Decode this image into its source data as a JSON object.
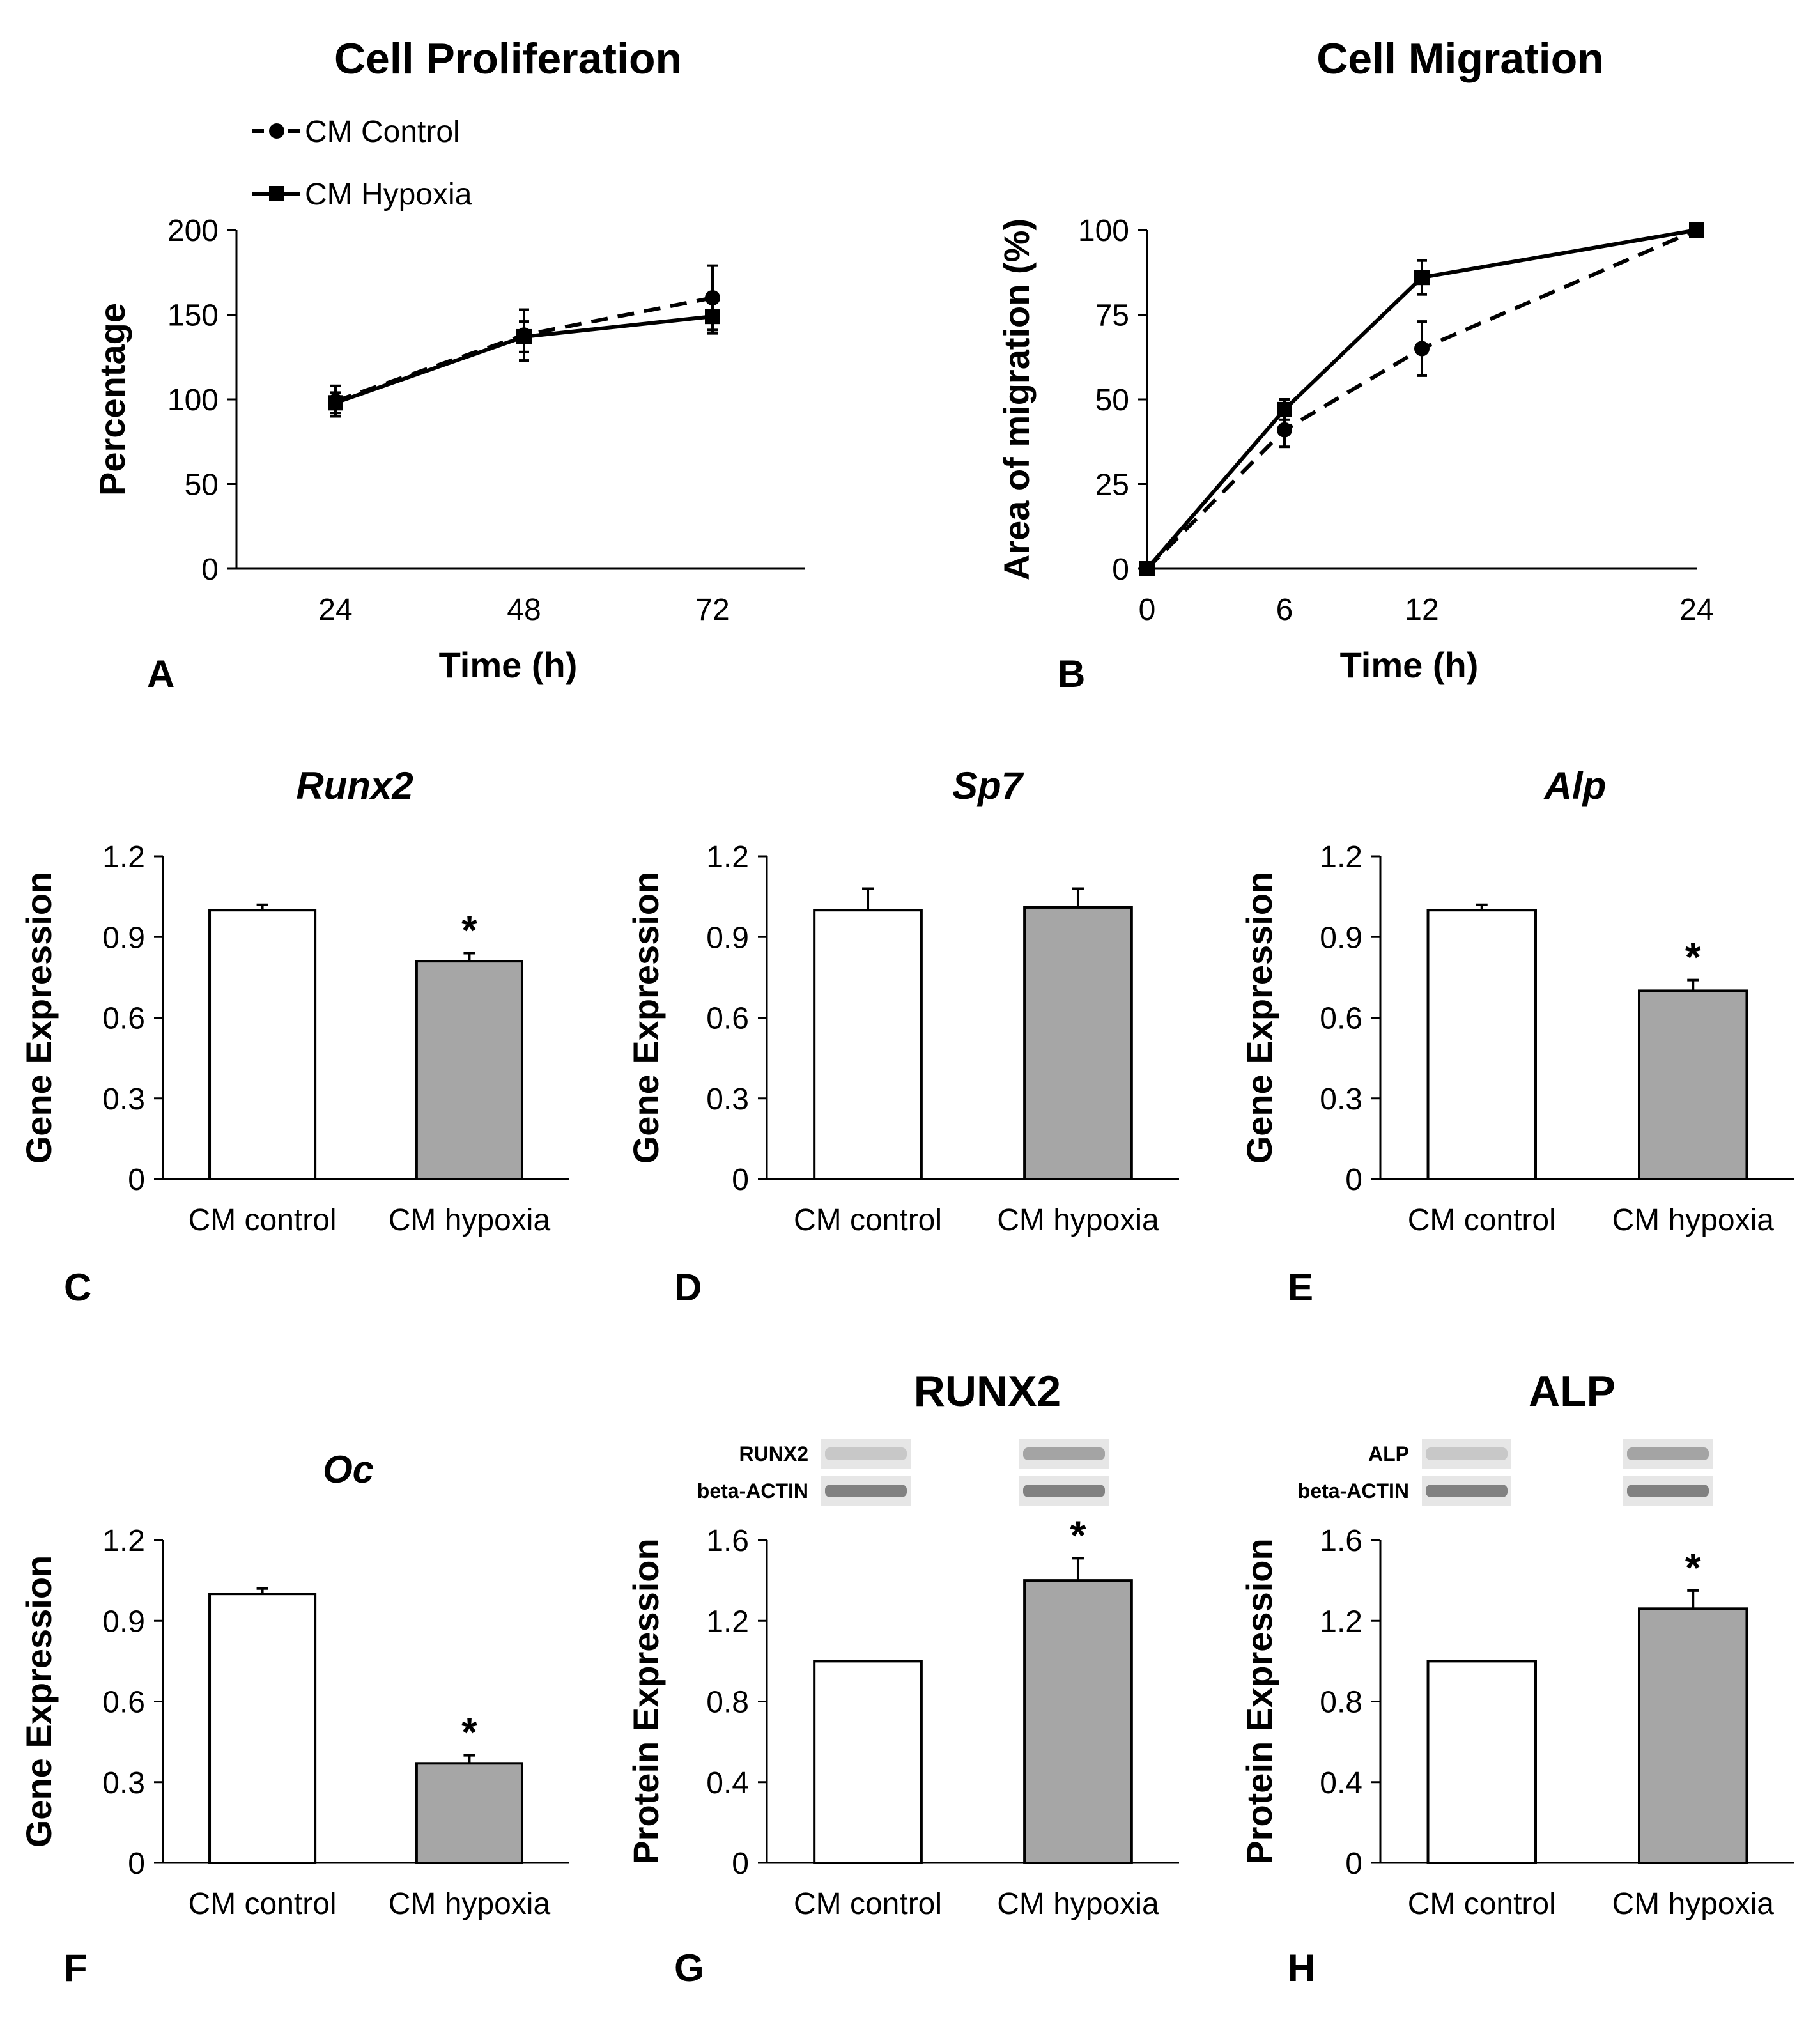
{
  "chart_data": [
    {
      "id": "A",
      "type": "line",
      "panel_letter": "A",
      "title": "Cell Proliferation",
      "xlabel": "Time (h)",
      "ylabel": "Percentage",
      "x": [
        24,
        48,
        72
      ],
      "ylim": [
        0,
        200
      ],
      "yticks": [
        0,
        50,
        100,
        150,
        200
      ],
      "series": [
        {
          "name": "CM Control",
          "values": [
            99,
            138,
            160
          ],
          "errors": [
            9,
            15,
            19
          ],
          "marker": "circle",
          "dashed": true
        },
        {
          "name": "CM Hypoxia",
          "values": [
            98,
            137,
            149
          ],
          "errors": [
            6,
            9,
            10
          ],
          "marker": "square",
          "dashed": false
        }
      ],
      "legend_position": "top-left"
    },
    {
      "id": "B",
      "type": "line",
      "panel_letter": "B",
      "title": "Cell Migration",
      "xlabel": "Time (h)",
      "ylabel": "Area of migration (%)",
      "x": [
        0,
        6,
        12,
        24
      ],
      "ylim": [
        0,
        100
      ],
      "yticks": [
        0,
        25,
        50,
        75,
        100
      ],
      "series": [
        {
          "name": "CM Control",
          "values": [
            0,
            41,
            65,
            100
          ],
          "errors": [
            0,
            5,
            8,
            0
          ],
          "marker": "circle",
          "dashed": true
        },
        {
          "name": "CM Hypoxia",
          "values": [
            0,
            47,
            86,
            100
          ],
          "errors": [
            0,
            3,
            5,
            0
          ],
          "marker": "square",
          "dashed": false
        }
      ]
    },
    {
      "id": "C",
      "type": "bar",
      "panel_letter": "C",
      "title": "Runx2",
      "italic_title": true,
      "ylabel": "Gene Expression",
      "ylim": [
        0,
        1.2
      ],
      "yticks": [
        "0",
        "0.3",
        "0.6",
        "0.9",
        "1.2"
      ],
      "categories": [
        "CM control",
        "CM hypoxia"
      ],
      "values": [
        1.0,
        0.81
      ],
      "errors": [
        0.02,
        0.03
      ],
      "significance": [
        "",
        "*"
      ]
    },
    {
      "id": "D",
      "type": "bar",
      "panel_letter": "D",
      "title": "Sp7",
      "italic_title": true,
      "ylabel": "Gene Expression",
      "ylim": [
        0,
        1.2
      ],
      "yticks": [
        "0",
        "0.3",
        "0.6",
        "0.9",
        "1.2"
      ],
      "categories": [
        "CM control",
        "CM hypoxia"
      ],
      "values": [
        1.0,
        1.01
      ],
      "errors": [
        0.08,
        0.07
      ],
      "significance": [
        "",
        ""
      ]
    },
    {
      "id": "E",
      "type": "bar",
      "panel_letter": "E",
      "title": "Alp",
      "italic_title": true,
      "ylabel": "Gene Expression",
      "ylim": [
        0,
        1.2
      ],
      "yticks": [
        "0",
        "0.3",
        "0.6",
        "0.9",
        "1.2"
      ],
      "categories": [
        "CM control",
        "CM hypoxia"
      ],
      "values": [
        1.0,
        0.7
      ],
      "errors": [
        0.02,
        0.04
      ],
      "significance": [
        "",
        "*"
      ]
    },
    {
      "id": "F",
      "type": "bar",
      "panel_letter": "F",
      "title": "Oc",
      "italic_title": true,
      "ylabel": "Gene Expression",
      "ylim": [
        0,
        1.2
      ],
      "yticks": [
        "0",
        "0.3",
        "0.6",
        "0.9",
        "1.2"
      ],
      "categories": [
        "CM control",
        "CM hypoxia"
      ],
      "values": [
        1.0,
        0.37
      ],
      "errors": [
        0.02,
        0.03
      ],
      "significance": [
        "",
        "*"
      ]
    },
    {
      "id": "G",
      "type": "bar",
      "panel_letter": "G",
      "title": "RUNX2",
      "italic_title": false,
      "ylabel": "Protein Expression",
      "ylim": [
        0,
        1.6
      ],
      "yticks": [
        "0",
        "0.4",
        "0.8",
        "1.2",
        "1.6"
      ],
      "categories": [
        "CM control",
        "CM hypoxia"
      ],
      "values": [
        1.0,
        1.4
      ],
      "errors": [
        0.0,
        0.11
      ],
      "significance": [
        "",
        "*"
      ],
      "blot_labels": [
        "RUNX2",
        "beta-ACTIN"
      ]
    },
    {
      "id": "H",
      "type": "bar",
      "panel_letter": "H",
      "title": "ALP",
      "italic_title": false,
      "ylabel": "Protein Expression",
      "ylim": [
        0,
        1.6
      ],
      "yticks": [
        "0",
        "0.4",
        "0.8",
        "1.2",
        "1.6"
      ],
      "categories": [
        "CM control",
        "CM hypoxia"
      ],
      "values": [
        1.0,
        1.26
      ],
      "errors": [
        0.0,
        0.09
      ],
      "significance": [
        "",
        "*"
      ],
      "blot_labels": [
        "ALP",
        "beta-ACTIN"
      ]
    }
  ],
  "colors": {
    "axis": "#000000",
    "control_bar": "#ffffff",
    "hypoxia_bar": "#a6a6a6",
    "blot_bg": "#e6e6e6",
    "blot_band": "#6e6e6e"
  }
}
